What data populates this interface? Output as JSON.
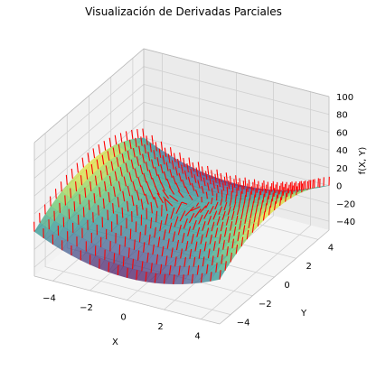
{
  "chart_data": {
    "type": "surface-3d",
    "title": "Visualización de Derivadas Parciales",
    "xlabel": "X",
    "ylabel": "Y",
    "zlabel": "f(X, Y)",
    "xlim": [
      -5,
      5
    ],
    "ylim": [
      -5,
      5
    ],
    "zlim": [
      -50,
      100
    ],
    "xticks": [
      -4,
      -2,
      0,
      2,
      4
    ],
    "yticks": [
      -4,
      -2,
      0,
      2,
      4
    ],
    "zticks": [
      -40,
      -20,
      0,
      20,
      40,
      60,
      80,
      100
    ],
    "surface": {
      "function": "X^2 - Y^2",
      "x_range": [
        -5,
        5
      ],
      "y_range": [
        -5,
        5
      ],
      "colormap": "viridis",
      "alpha": 0.7
    },
    "quiver": {
      "color": "#ff0000",
      "u": "dZ/dX = 2X",
      "v": "dZ/dY = -2Y",
      "grid_step": 0.5
    },
    "grid": true
  }
}
